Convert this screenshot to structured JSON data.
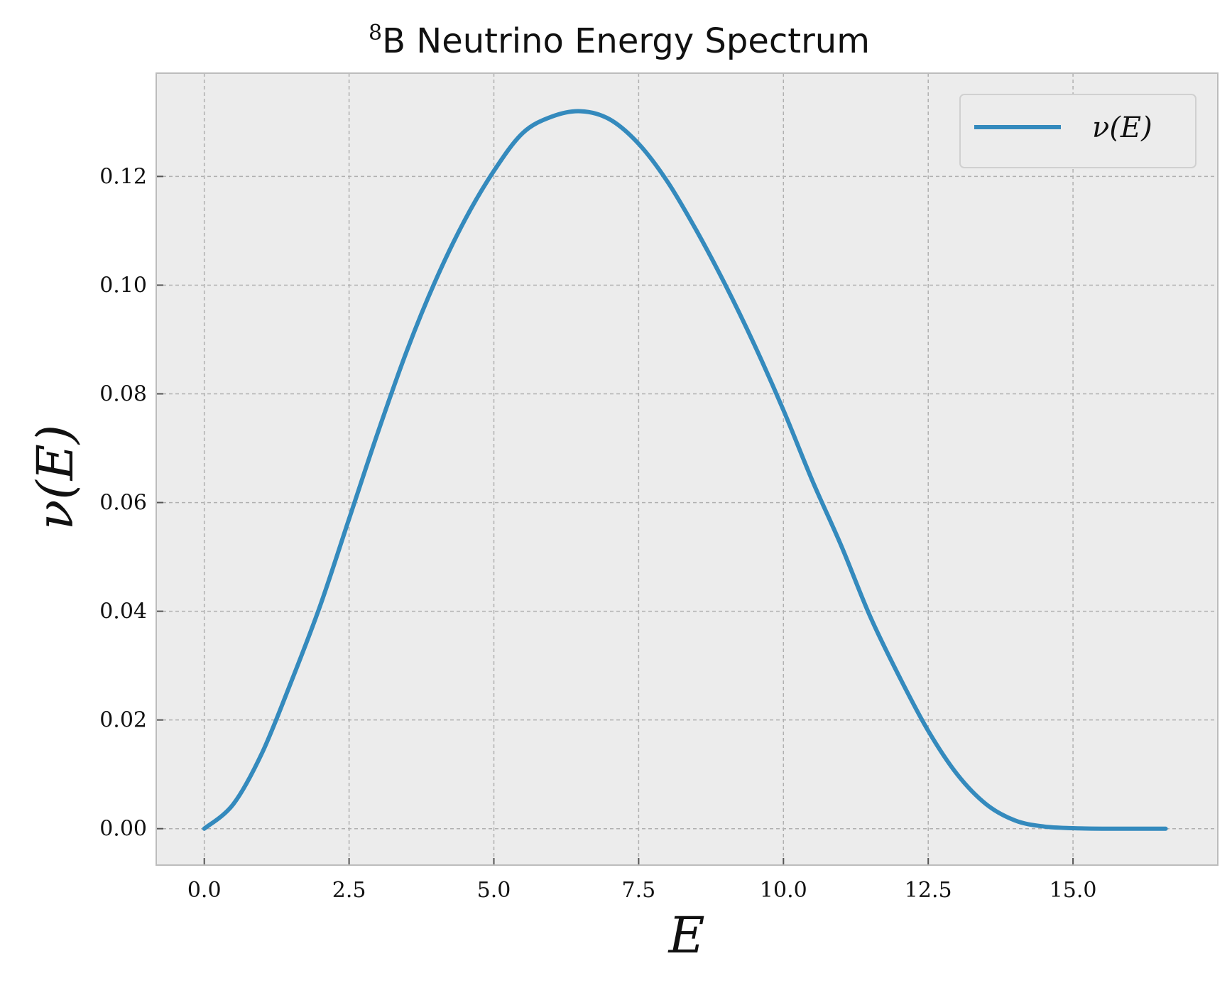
{
  "chart_data": {
    "type": "line",
    "title_superscript": "8",
    "title": "B Neutrino Energy Spectrum",
    "xlabel": "E",
    "ylabel": "ν(E)",
    "xlim": [
      -0.83,
      17.5
    ],
    "ylim": [
      -0.0067,
      0.139
    ],
    "x_ticks": [
      0.0,
      2.5,
      5.0,
      7.5,
      10.0,
      12.5,
      15.0
    ],
    "x_tick_labels": [
      "0.0",
      "2.5",
      "5.0",
      "7.5",
      "10.0",
      "12.5",
      "15.0"
    ],
    "y_ticks": [
      0.0,
      0.02,
      0.04,
      0.06,
      0.08,
      0.1,
      0.12
    ],
    "y_tick_labels": [
      "0.00",
      "0.02",
      "0.04",
      "0.06",
      "0.08",
      "0.10",
      "0.12"
    ],
    "grid": true,
    "legend_position": "top-right",
    "colors": {
      "series": "#348abd",
      "plot_background": "#ececec",
      "grid": "#b0b0b0",
      "frame": "#bcbcbc"
    },
    "series": [
      {
        "name": "ν(E)",
        "x": [
          0.0,
          0.5,
          1.0,
          1.5,
          2.0,
          2.5,
          3.0,
          3.5,
          4.0,
          4.5,
          5.0,
          5.5,
          6.0,
          6.5,
          7.0,
          7.5,
          8.0,
          8.5,
          9.0,
          9.5,
          10.0,
          10.5,
          11.0,
          11.5,
          12.0,
          12.5,
          13.0,
          13.5,
          14.0,
          14.5,
          15.0,
          15.5,
          16.0,
          16.6
        ],
        "y": [
          0.0,
          0.0045,
          0.014,
          0.027,
          0.041,
          0.057,
          0.073,
          0.088,
          0.101,
          0.112,
          0.121,
          0.128,
          0.131,
          0.132,
          0.1305,
          0.126,
          0.119,
          0.11,
          0.1,
          0.089,
          0.077,
          0.064,
          0.052,
          0.039,
          0.028,
          0.018,
          0.01,
          0.0045,
          0.0015,
          0.0004,
          0.0001,
          0.0,
          0.0,
          0.0
        ]
      }
    ]
  }
}
